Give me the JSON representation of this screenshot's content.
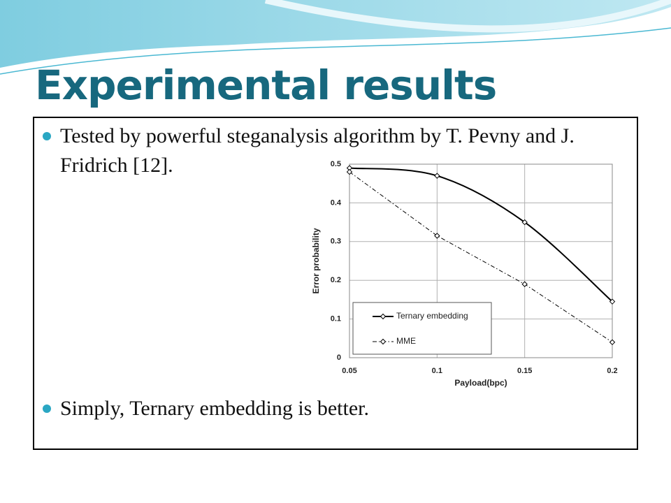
{
  "slide": {
    "title": "Experimental results",
    "bullets": [
      "Tested by powerful steganalysis algorithm by T. Pevny and J. Fridrich [12].",
      "Simply, Ternary embedding is better."
    ]
  },
  "chart_data": {
    "type": "line",
    "x_label": "Payload(bpc)",
    "y_label": "Error probability",
    "x": [
      0.05,
      0.1,
      0.15,
      0.2
    ],
    "series": [
      {
        "name": "Ternary embedding",
        "color": "#000000",
        "line_style": "solid",
        "smooth": true,
        "values": [
          0.49,
          0.47,
          0.35,
          0.145
        ]
      },
      {
        "name": "MME",
        "color": "#000000",
        "line_style": "dashdot",
        "smooth": false,
        "values": [
          0.48,
          0.315,
          0.19,
          0.04
        ]
      }
    ],
    "xlim": [
      0.05,
      0.2
    ],
    "ylim": [
      0,
      0.5
    ],
    "xticks": [
      0.05,
      0.1,
      0.15,
      0.2
    ],
    "yticks": [
      0,
      0.1,
      0.2,
      0.3,
      0.4,
      0.5
    ],
    "grid": true,
    "legend": "lower left"
  }
}
